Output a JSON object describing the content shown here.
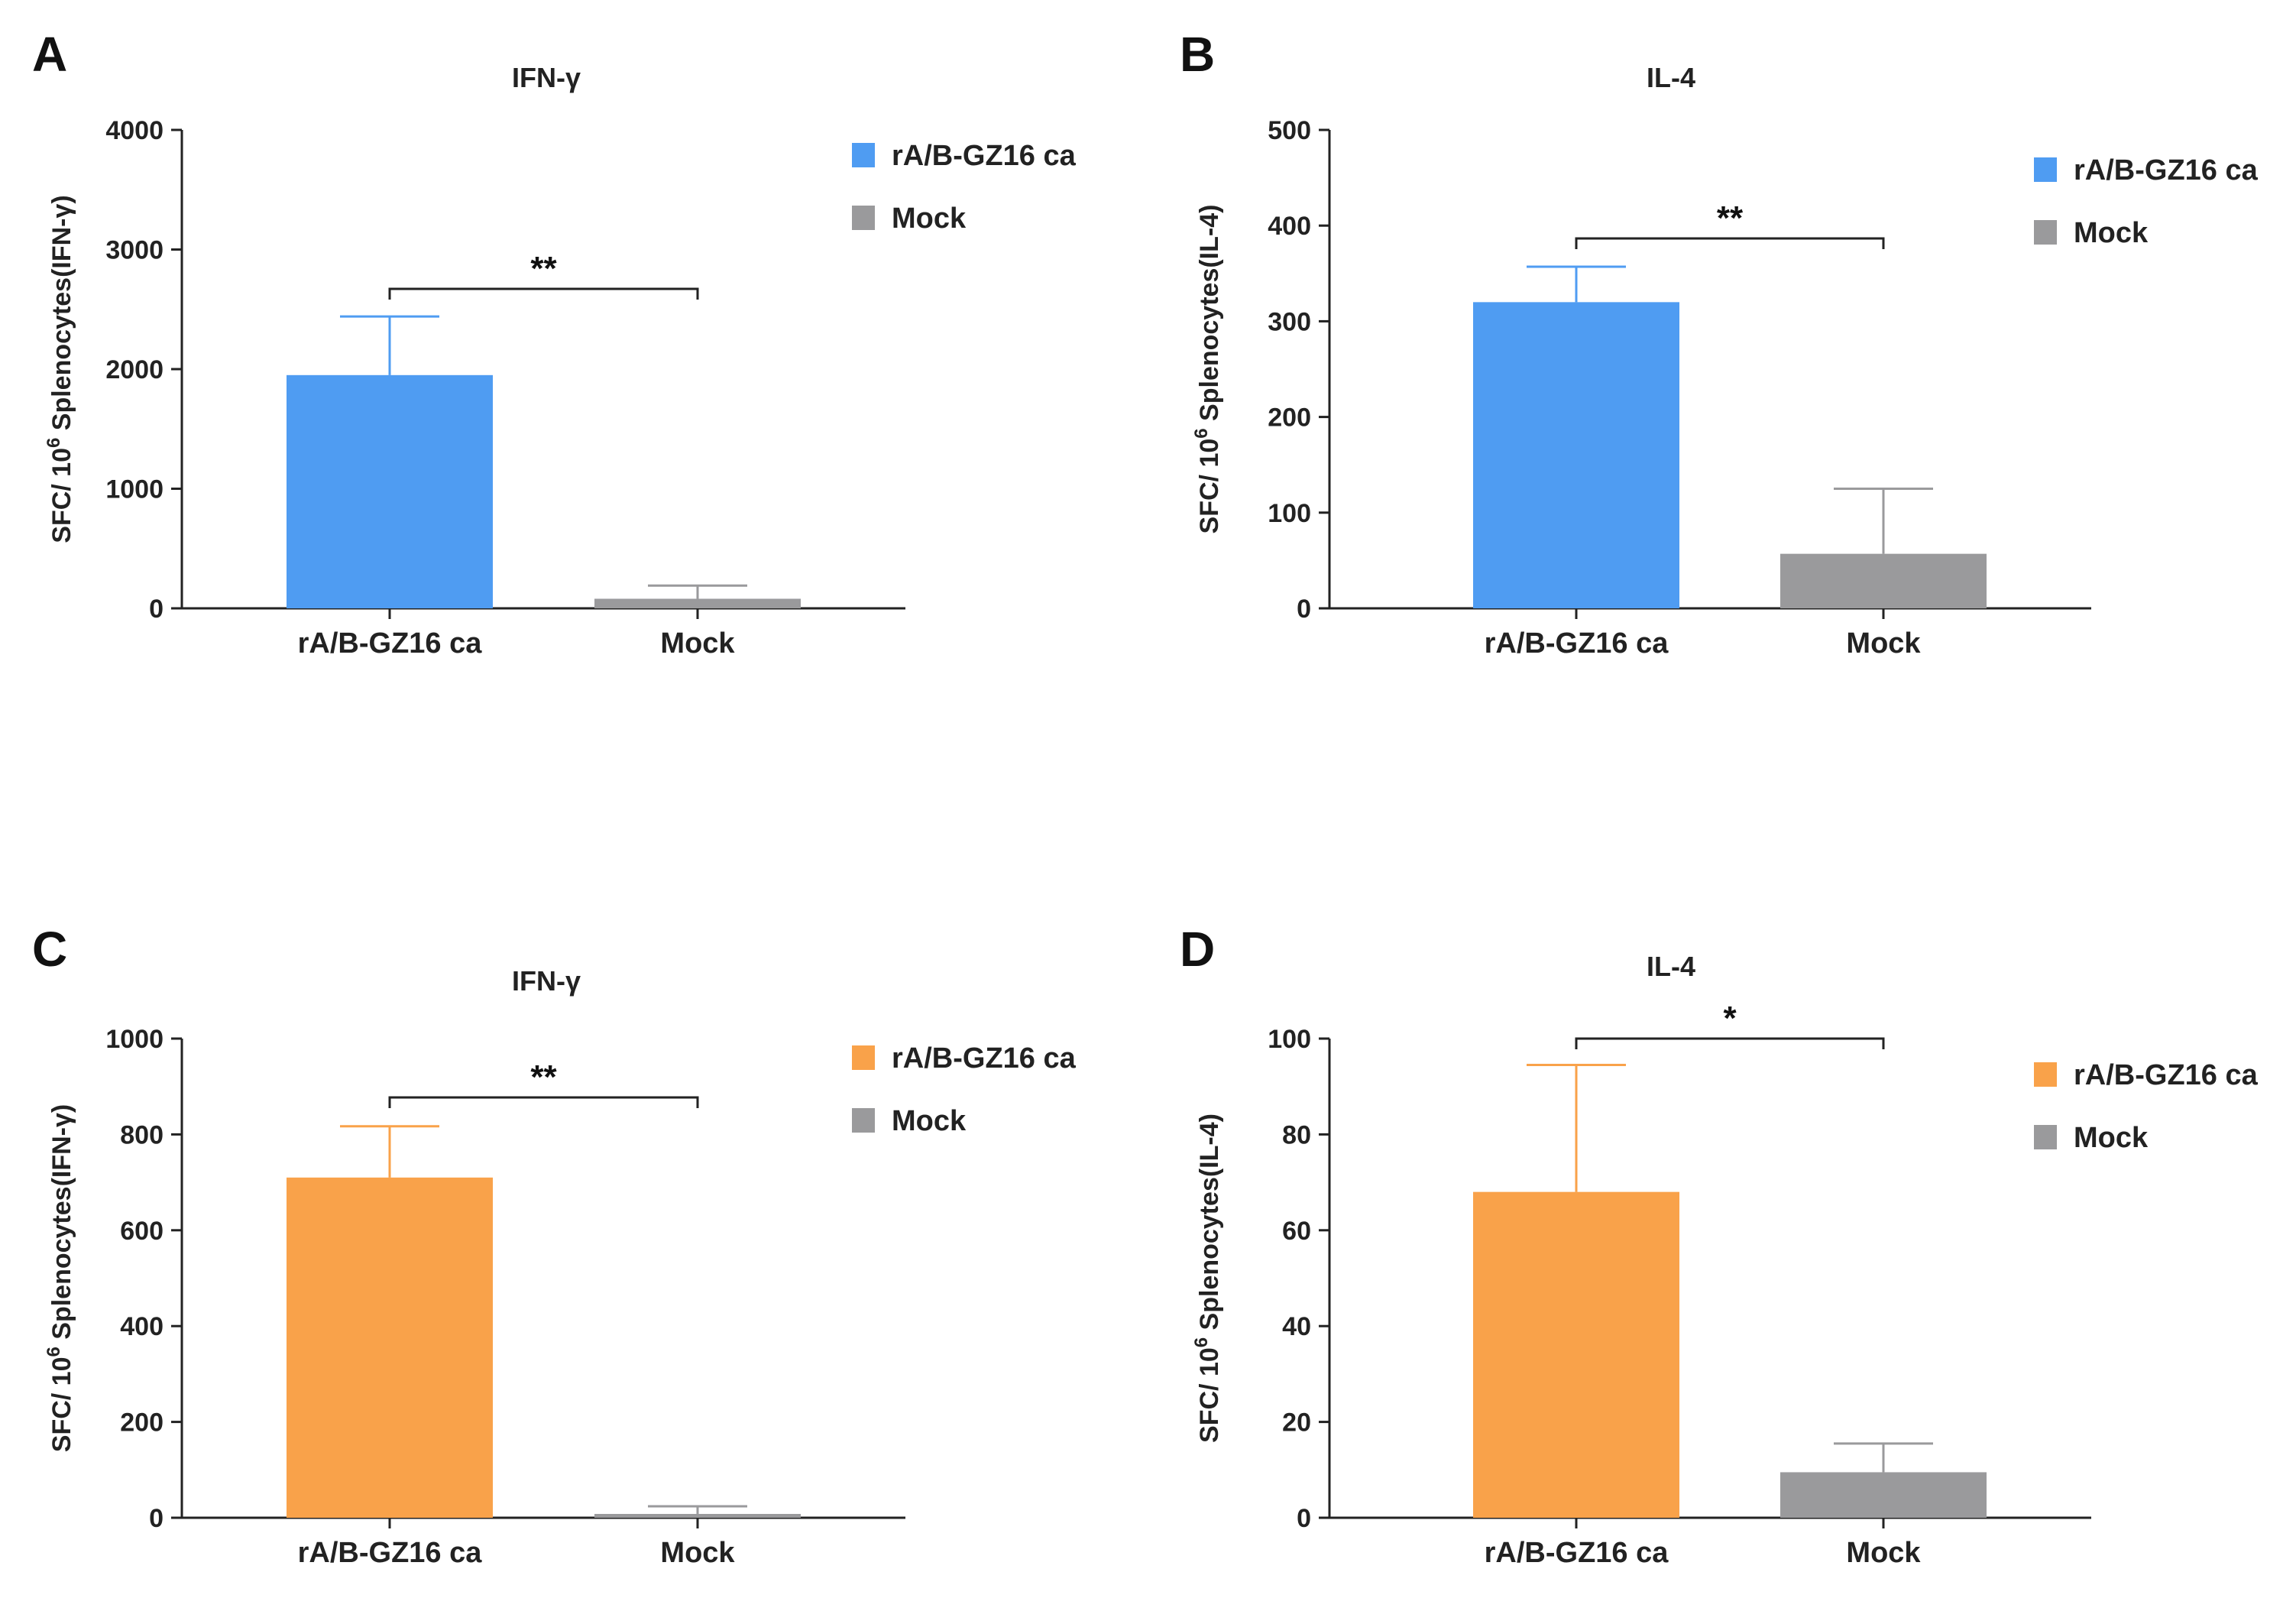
{
  "chart_data": [
    {
      "panel": "A",
      "type": "bar",
      "title": "IFN-γ",
      "ylabel": "SFC/ 10^6 Splenocytes(IFN-γ)",
      "ylabel_parts": {
        "pre": "SFC/ 10",
        "sup": "6",
        "post": " Splenocytes(IFN-γ)"
      },
      "ylim": [
        0,
        4000
      ],
      "yticks": [
        0,
        1000,
        2000,
        3000,
        4000
      ],
      "categories": [
        "rA/B-GZ16 ca",
        "Mock"
      ],
      "values": [
        1950,
        80
      ],
      "errors": [
        490,
        110
      ],
      "colors": [
        "#4f9cf2",
        "#9a9a9c"
      ],
      "legend": [
        {
          "label": "rA/B-GZ16 ca",
          "color": "#4f9cf2"
        },
        {
          "label": "Mock",
          "color": "#9a9a9c"
        }
      ],
      "significance": "**"
    },
    {
      "panel": "B",
      "type": "bar",
      "title": "IL-4",
      "ylabel": "SFC/ 10^6 Splenocytes(IL-4)",
      "ylabel_parts": {
        "pre": "SFC/ 10",
        "sup": "6",
        "post": " Splenocytes(IL-4)"
      },
      "ylim": [
        0,
        500
      ],
      "yticks": [
        0,
        100,
        200,
        300,
        400,
        500
      ],
      "categories": [
        "rA/B-GZ16 ca",
        "Mock"
      ],
      "values": [
        320,
        57
      ],
      "errors": [
        37,
        68
      ],
      "colors": [
        "#4f9cf2",
        "#9a9a9c"
      ],
      "legend": [
        {
          "label": "rA/B-GZ16 ca",
          "color": "#4f9cf2"
        },
        {
          "label": "Mock",
          "color": "#9a9a9c"
        }
      ],
      "significance": "**"
    },
    {
      "panel": "C",
      "type": "bar",
      "title": "IFN-γ",
      "ylabel": "SFC/ 10^6 Splenocytes(IFN-γ)",
      "ylabel_parts": {
        "pre": "SFC/ 10",
        "sup": "6",
        "post": " Splenocytes(IFN-γ)"
      },
      "ylim": [
        0,
        1000
      ],
      "yticks": [
        0,
        200,
        400,
        600,
        800,
        1000
      ],
      "categories": [
        "rA/B-GZ16 ca",
        "Mock"
      ],
      "values": [
        710,
        8
      ],
      "errors": [
        107,
        16
      ],
      "colors": [
        "#f9a24a",
        "#9a9a9c"
      ],
      "legend": [
        {
          "label": "rA/B-GZ16 ca",
          "color": "#f9a24a"
        },
        {
          "label": "Mock",
          "color": "#9a9a9c"
        }
      ],
      "significance": "**"
    },
    {
      "panel": "D",
      "type": "bar",
      "title": "IL-4",
      "ylabel": "SFC/ 10^6 Splenocytes(IL-4)",
      "ylabel_parts": {
        "pre": "SFC/ 10",
        "sup": "6",
        "post": " Splenocytes(IL-4)"
      },
      "ylim": [
        0,
        100
      ],
      "yticks": [
        0,
        20,
        40,
        60,
        80,
        100
      ],
      "categories": [
        "rA/B-GZ16 ca",
        "Mock"
      ],
      "values": [
        68,
        9.5
      ],
      "errors": [
        26.5,
        6
      ],
      "colors": [
        "#f9a24a",
        "#9a9a9c"
      ],
      "legend": [
        {
          "label": "rA/B-GZ16 ca",
          "color": "#f9a24a"
        },
        {
          "label": "Mock",
          "color": "#9a9a9c"
        }
      ],
      "significance": "*"
    }
  ]
}
